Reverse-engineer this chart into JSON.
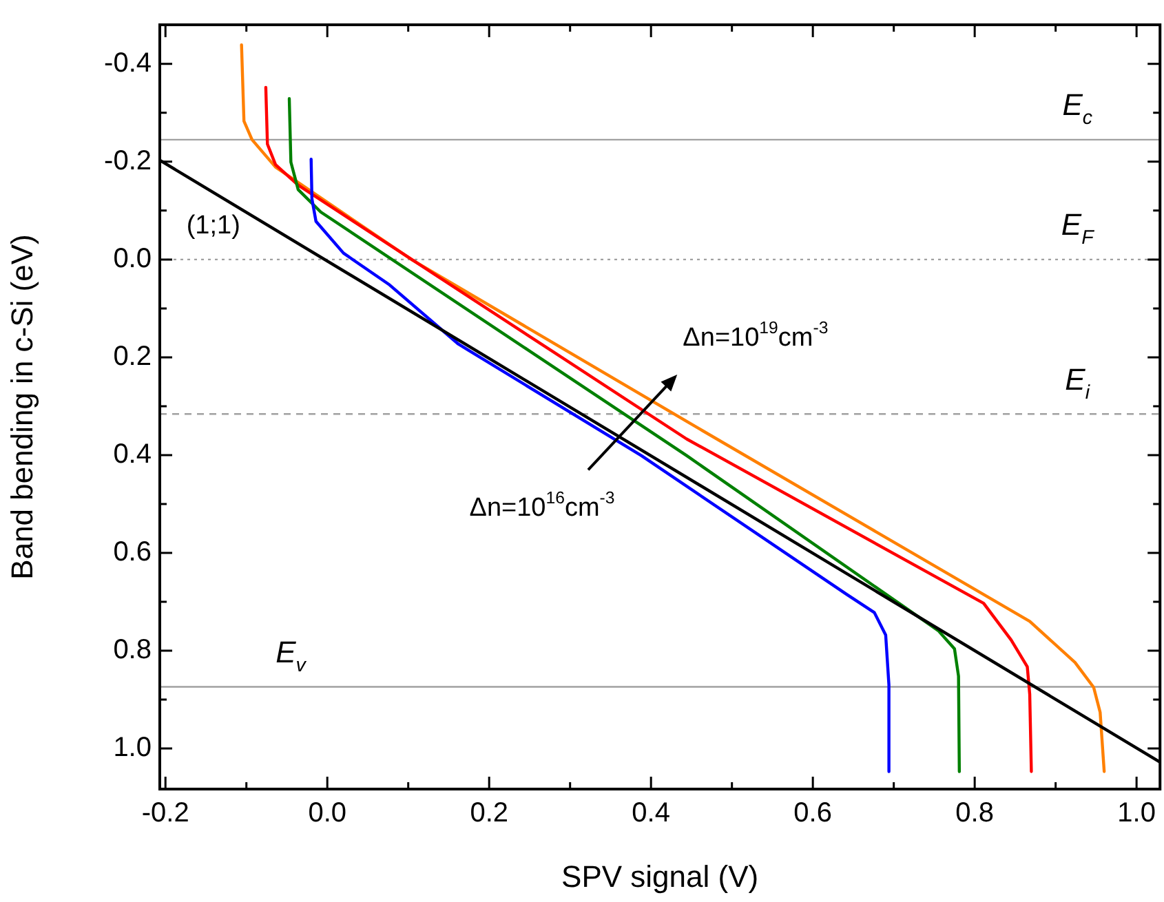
{
  "chart_data": {
    "type": "line",
    "xlabel": "SPV signal (V)",
    "ylabel": "Band bending in c-Si (eV)",
    "xlim": [
      -0.207,
      1.029
    ],
    "ylim": [
      1.083,
      -0.48
    ],
    "xticks": [
      {
        "value": -0.2,
        "label": "-0.2"
      },
      {
        "value": -0.1,
        "label": null
      },
      {
        "value": 0,
        "label": "0.0"
      },
      {
        "value": 0.1,
        "label": null
      },
      {
        "value": 0.2,
        "label": "0.2"
      },
      {
        "value": 0.3,
        "label": null
      },
      {
        "value": 0.4,
        "label": "0.4"
      },
      {
        "value": 0.5,
        "label": null
      },
      {
        "value": 0.6,
        "label": "0.6"
      },
      {
        "value": 0.7,
        "label": null
      },
      {
        "value": 0.8,
        "label": "0.8"
      },
      {
        "value": 0.9,
        "label": null
      },
      {
        "value": 1.0,
        "label": "1.0"
      }
    ],
    "yticks": [
      {
        "value": -0.4,
        "label": "-0.4"
      },
      {
        "value": -0.3,
        "label": null
      },
      {
        "value": -0.2,
        "label": "-0.2"
      },
      {
        "value": -0.1,
        "label": null
      },
      {
        "value": 0,
        "label": "0.0"
      },
      {
        "value": 0.1,
        "label": null
      },
      {
        "value": 0.2,
        "label": "0.2"
      },
      {
        "value": 0.3,
        "label": null
      },
      {
        "value": 0.4,
        "label": "0.4"
      },
      {
        "value": 0.5,
        "label": null
      },
      {
        "value": 0.6,
        "label": "0.6"
      },
      {
        "value": 0.7,
        "label": null
      },
      {
        "value": 0.8,
        "label": "0.8"
      },
      {
        "value": 0.9,
        "label": null
      },
      {
        "value": 1.0,
        "label": "1.0"
      }
    ],
    "grid": false,
    "legend": false,
    "marker": "none",
    "line_style": "solid",
    "series": [
      {
        "color": "#000000",
        "x": [
          -0.207,
          1.029
        ],
        "values": [
          -0.203,
          1.028
        ]
      },
      {
        "color": "#0000ff",
        "x": [
          -0.02,
          -0.019,
          -0.014,
          0.02,
          0.077,
          0.162,
          0.388,
          0.642,
          0.676,
          0.69,
          0.694,
          0.694
        ],
        "values": [
          -0.205,
          -0.124,
          -0.078,
          -0.013,
          0.052,
          0.173,
          0.401,
          0.685,
          0.722,
          0.768,
          0.87,
          1.047
        ]
      },
      {
        "color": "#008000",
        "x": [
          -0.047,
          -0.045,
          -0.036,
          -0.008,
          0.444,
          0.755,
          0.775,
          0.78,
          0.781
        ],
        "values": [
          -0.329,
          -0.199,
          -0.143,
          -0.097,
          0.401,
          0.759,
          0.796,
          0.852,
          1.047
        ]
      },
      {
        "color": "#ff0000",
        "x": [
          -0.076,
          -0.074,
          -0.064,
          -0.036,
          0.444,
          0.811,
          0.845,
          0.865,
          0.868,
          0.87
        ],
        "values": [
          -0.352,
          -0.236,
          -0.194,
          -0.152,
          0.367,
          0.703,
          0.778,
          0.833,
          0.889,
          1.047
        ]
      },
      {
        "color": "#ff8000",
        "x": [
          -0.106,
          -0.103,
          -0.093,
          -0.064,
          0.105,
          0.444,
          0.868,
          0.924,
          0.947,
          0.955,
          0.96
        ],
        "values": [
          -0.439,
          -0.283,
          -0.245,
          -0.189,
          0.001,
          0.331,
          0.74,
          0.824,
          0.875,
          0.926,
          1.047
        ]
      }
    ],
    "ref_lines": [
      {
        "axis": "y",
        "value": -0.245,
        "label": "E$_{c}$",
        "color": "#a0a0a0",
        "line_style": "solid"
      },
      {
        "axis": "y",
        "value": 0,
        "label": "E$_{F}$",
        "color": "#a0a0a0",
        "line_style": "dotted"
      },
      {
        "axis": "y",
        "value": 0.316,
        "label": "E$_{i}$",
        "color": "#a0a0a0",
        "line_style": "dashed"
      },
      {
        "axis": "y",
        "value": 0.874,
        "label": "E$_{v}$",
        "color": "#a0a0a0",
        "line_style": "solid"
      }
    ],
    "annotations": [
      {
        "text": "(1;1)",
        "x": -0.1,
        "y": -0.096
      },
      {
        "text": "Δn=10$^{19}$cm$^{-3}$",
        "x": 0.444,
        "y": 0.331
      },
      {
        "text": "Δn=10$^{16}$cm$^{-3}$",
        "x": 0.359,
        "y": 0.369
      }
    ]
  }
}
